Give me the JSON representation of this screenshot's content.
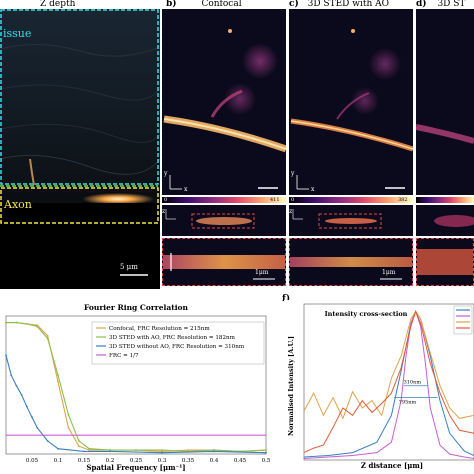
{
  "headers": {
    "a": "Z depth",
    "b": "b)",
    "b_title": "Confocal",
    "c": "c)",
    "c_title": "3D STED with AO",
    "d": "d)",
    "d_title": "3D ST"
  },
  "panel_a": {
    "tissue_label": "issue",
    "axon_label": "Axon",
    "scale_bar": "5 μm"
  },
  "panel_b": {
    "colorbar_min": "0",
    "colorbar_max": "411",
    "scale_bar": "1μm"
  },
  "panel_c": {
    "colorbar_min": "0",
    "colorbar_max": "382",
    "scale_bar": "1μm"
  },
  "axis_marks": {
    "y": "y",
    "x": "x",
    "z": "z"
  },
  "chart_data": [
    {
      "type": "line",
      "title": "Fourier Ring Correlation",
      "xlabel": "Spatial Frequency [μm⁻¹]",
      "ylabel": "",
      "xlim": [
        0,
        0.5
      ],
      "ylim": [
        0,
        1.05
      ],
      "x_ticks": [
        "0.05",
        "0.1",
        "0.15",
        "0.2",
        "0.25",
        "0.3",
        "0.35",
        "0.4",
        "0.45",
        "0.5"
      ],
      "legend_position": "top-right",
      "series": [
        {
          "name": "Confocal, FRC Resolution = 215nm",
          "color": "#e0a34a",
          "x": [
            0.0,
            0.02,
            0.04,
            0.06,
            0.08,
            0.1,
            0.12,
            0.14,
            0.16,
            0.2,
            0.25,
            0.3,
            0.35,
            0.4,
            0.45,
            0.5
          ],
          "y": [
            1.0,
            1.0,
            0.99,
            0.98,
            0.9,
            0.55,
            0.2,
            0.06,
            0.03,
            0.03,
            0.03,
            0.02,
            0.03,
            0.03,
            0.02,
            0.03
          ]
        },
        {
          "name": "3D STED with AO, FRC Resolution = 182nm",
          "color": "#8bbf4a",
          "x": [
            0.0,
            0.02,
            0.04,
            0.06,
            0.08,
            0.1,
            0.12,
            0.14,
            0.16,
            0.2,
            0.25,
            0.3,
            0.35,
            0.4,
            0.45,
            0.5
          ],
          "y": [
            1.0,
            1.0,
            0.99,
            0.97,
            0.88,
            0.6,
            0.3,
            0.1,
            0.04,
            0.03,
            0.03,
            0.03,
            0.02,
            0.03,
            0.02,
            0.03
          ]
        },
        {
          "name": "3D STED without AO, FRC Resolution = 310nm",
          "color": "#3a7fc1",
          "x": [
            0.0,
            0.01,
            0.02,
            0.03,
            0.04,
            0.05,
            0.06,
            0.08,
            0.1,
            0.15,
            0.2,
            0.3,
            0.4,
            0.5
          ],
          "y": [
            0.75,
            0.6,
            0.52,
            0.45,
            0.36,
            0.28,
            0.2,
            0.1,
            0.04,
            0.02,
            0.02,
            0.01,
            0.02,
            0.01
          ]
        },
        {
          "name": "FRC = 1/7",
          "color": "#c85fd0",
          "x": [
            0.0,
            0.5
          ],
          "y": [
            0.1428,
            0.1428
          ]
        }
      ]
    },
    {
      "type": "line",
      "title": "Intensity cross-section",
      "xlabel": "Z distance [μm]",
      "ylabel": "Normalised Intensity [A.U.]",
      "xlim": [
        0,
        3.5
      ],
      "ylim": [
        0,
        1.05
      ],
      "legend_position": "top-right",
      "annotations": [
        "310nm",
        "795nm"
      ],
      "series": [
        {
          "color": "#3a7fc1",
          "x": [
            0.0,
            0.5,
            1.0,
            1.5,
            1.8,
            2.0,
            2.2,
            2.3,
            2.4,
            2.6,
            2.8,
            3.0,
            3.3,
            3.5
          ],
          "y": [
            0.02,
            0.03,
            0.05,
            0.12,
            0.3,
            0.6,
            0.92,
            1.0,
            0.95,
            0.7,
            0.4,
            0.18,
            0.06,
            0.03
          ]
        },
        {
          "color": "#c85fd0",
          "x": [
            0.0,
            0.5,
            1.0,
            1.5,
            1.8,
            2.0,
            2.1,
            2.2,
            2.3,
            2.4,
            2.5,
            2.6,
            2.8,
            3.0,
            3.3,
            3.5
          ],
          "y": [
            0.01,
            0.02,
            0.03,
            0.05,
            0.12,
            0.4,
            0.7,
            0.92,
            1.0,
            0.9,
            0.65,
            0.35,
            0.1,
            0.04,
            0.02,
            0.01
          ]
        },
        {
          "color": "#e0a34a",
          "x": [
            0.0,
            0.2,
            0.4,
            0.6,
            0.8,
            1.0,
            1.2,
            1.4,
            1.6,
            1.8,
            2.0,
            2.2,
            2.3,
            2.4,
            2.6,
            2.8,
            3.0,
            3.2,
            3.5
          ],
          "y": [
            0.33,
            0.45,
            0.3,
            0.42,
            0.28,
            0.46,
            0.35,
            0.4,
            0.3,
            0.55,
            0.7,
            0.95,
            1.0,
            0.95,
            0.72,
            0.5,
            0.35,
            0.28,
            0.3
          ]
        },
        {
          "color": "#e05a3a",
          "x": [
            0.0,
            0.2,
            0.4,
            0.6,
            0.8,
            1.0,
            1.2,
            1.4,
            1.6,
            1.8,
            2.0,
            2.2,
            2.3,
            2.4,
            2.6,
            2.8,
            3.0,
            3.2,
            3.5
          ],
          "y": [
            0.05,
            0.08,
            0.1,
            0.22,
            0.35,
            0.3,
            0.4,
            0.32,
            0.38,
            0.45,
            0.62,
            0.9,
            1.0,
            0.92,
            0.65,
            0.45,
            0.3,
            0.2,
            0.18
          ]
        }
      ]
    }
  ]
}
